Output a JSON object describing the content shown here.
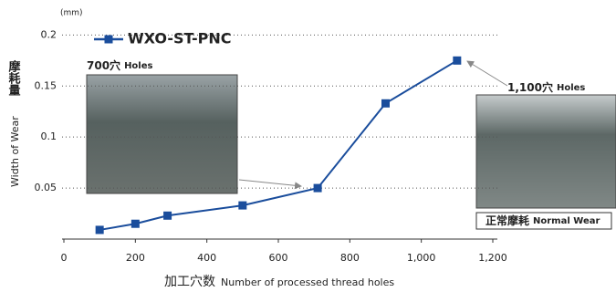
{
  "chart_data": {
    "type": "line",
    "y_unit": "(mm)",
    "y_label_ja": "摩耗量",
    "y_label": "Width of Wear",
    "x_label_ja": "加工穴数",
    "x_label": "Number of processed thread holes",
    "x": [
      100,
      200,
      290,
      500,
      710,
      900,
      1100
    ],
    "series": [
      {
        "name": "WXO-ST-PNC",
        "color": "#1a4d9c",
        "values": [
          0.009,
          0.015,
          0.023,
          0.033,
          0.05,
          0.133,
          0.175
        ]
      }
    ],
    "xlim": [
      0,
      1200
    ],
    "xticks": [
      0,
      200,
      400,
      600,
      800,
      {
        "value": 1000,
        "label": "1,000"
      },
      {
        "value": 1200,
        "label": "1,200"
      }
    ],
    "ylim": [
      0,
      0.22
    ],
    "yticks": [
      0.05,
      0.1,
      0.15,
      0.2
    ],
    "grid": true,
    "annotations": [
      {
        "label": "700穴",
        "unit": "Holes"
      },
      {
        "label": "1,100穴",
        "unit": "Holes"
      },
      {
        "label": "正常摩耗",
        "unit": "Normal Wear"
      }
    ]
  }
}
